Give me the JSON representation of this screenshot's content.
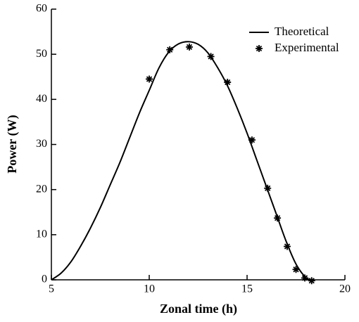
{
  "chart_data": {
    "type": "line-scatter",
    "x_label": "Zonal time (h)",
    "y_label": "Power (W)",
    "xlim": [
      5,
      20
    ],
    "ylim": [
      0,
      60
    ],
    "xticks": [
      5,
      10,
      15,
      20
    ],
    "yticks": [
      0,
      10,
      20,
      30,
      40,
      50,
      60
    ],
    "legend": "upper right",
    "series": [
      {
        "name": "Theoretical",
        "kind": "line",
        "color": "#000000",
        "x": [
          5,
          5.5,
          6,
          6.5,
          7,
          7.5,
          8,
          8.5,
          9,
          9.5,
          10,
          10.5,
          11,
          11.5,
          12,
          12.5,
          13,
          13.5,
          14,
          14.5,
          15,
          15.5,
          16,
          16.5,
          17,
          17.5,
          18,
          18.3
        ],
        "values": [
          0,
          1.5,
          4,
          7.5,
          11.5,
          16,
          21,
          26,
          31.5,
          37,
          42,
          47,
          50.5,
          52.3,
          52.8,
          52.2,
          50.3,
          47,
          43,
          38,
          32.5,
          26.5,
          20.5,
          14.5,
          8.5,
          3.5,
          0.5,
          0
        ]
      },
      {
        "name": "Experimental",
        "kind": "scatter",
        "color": "#000000",
        "x": [
          10,
          11.05,
          12.05,
          13.15,
          14,
          15.25,
          16.05,
          16.55,
          17.05,
          17.5,
          17.95,
          18.3
        ],
        "values": [
          44.5,
          51,
          51.6,
          49.5,
          43.8,
          31,
          20.3,
          13.7,
          7.4,
          2.3,
          0.4,
          -0.2
        ]
      }
    ]
  }
}
